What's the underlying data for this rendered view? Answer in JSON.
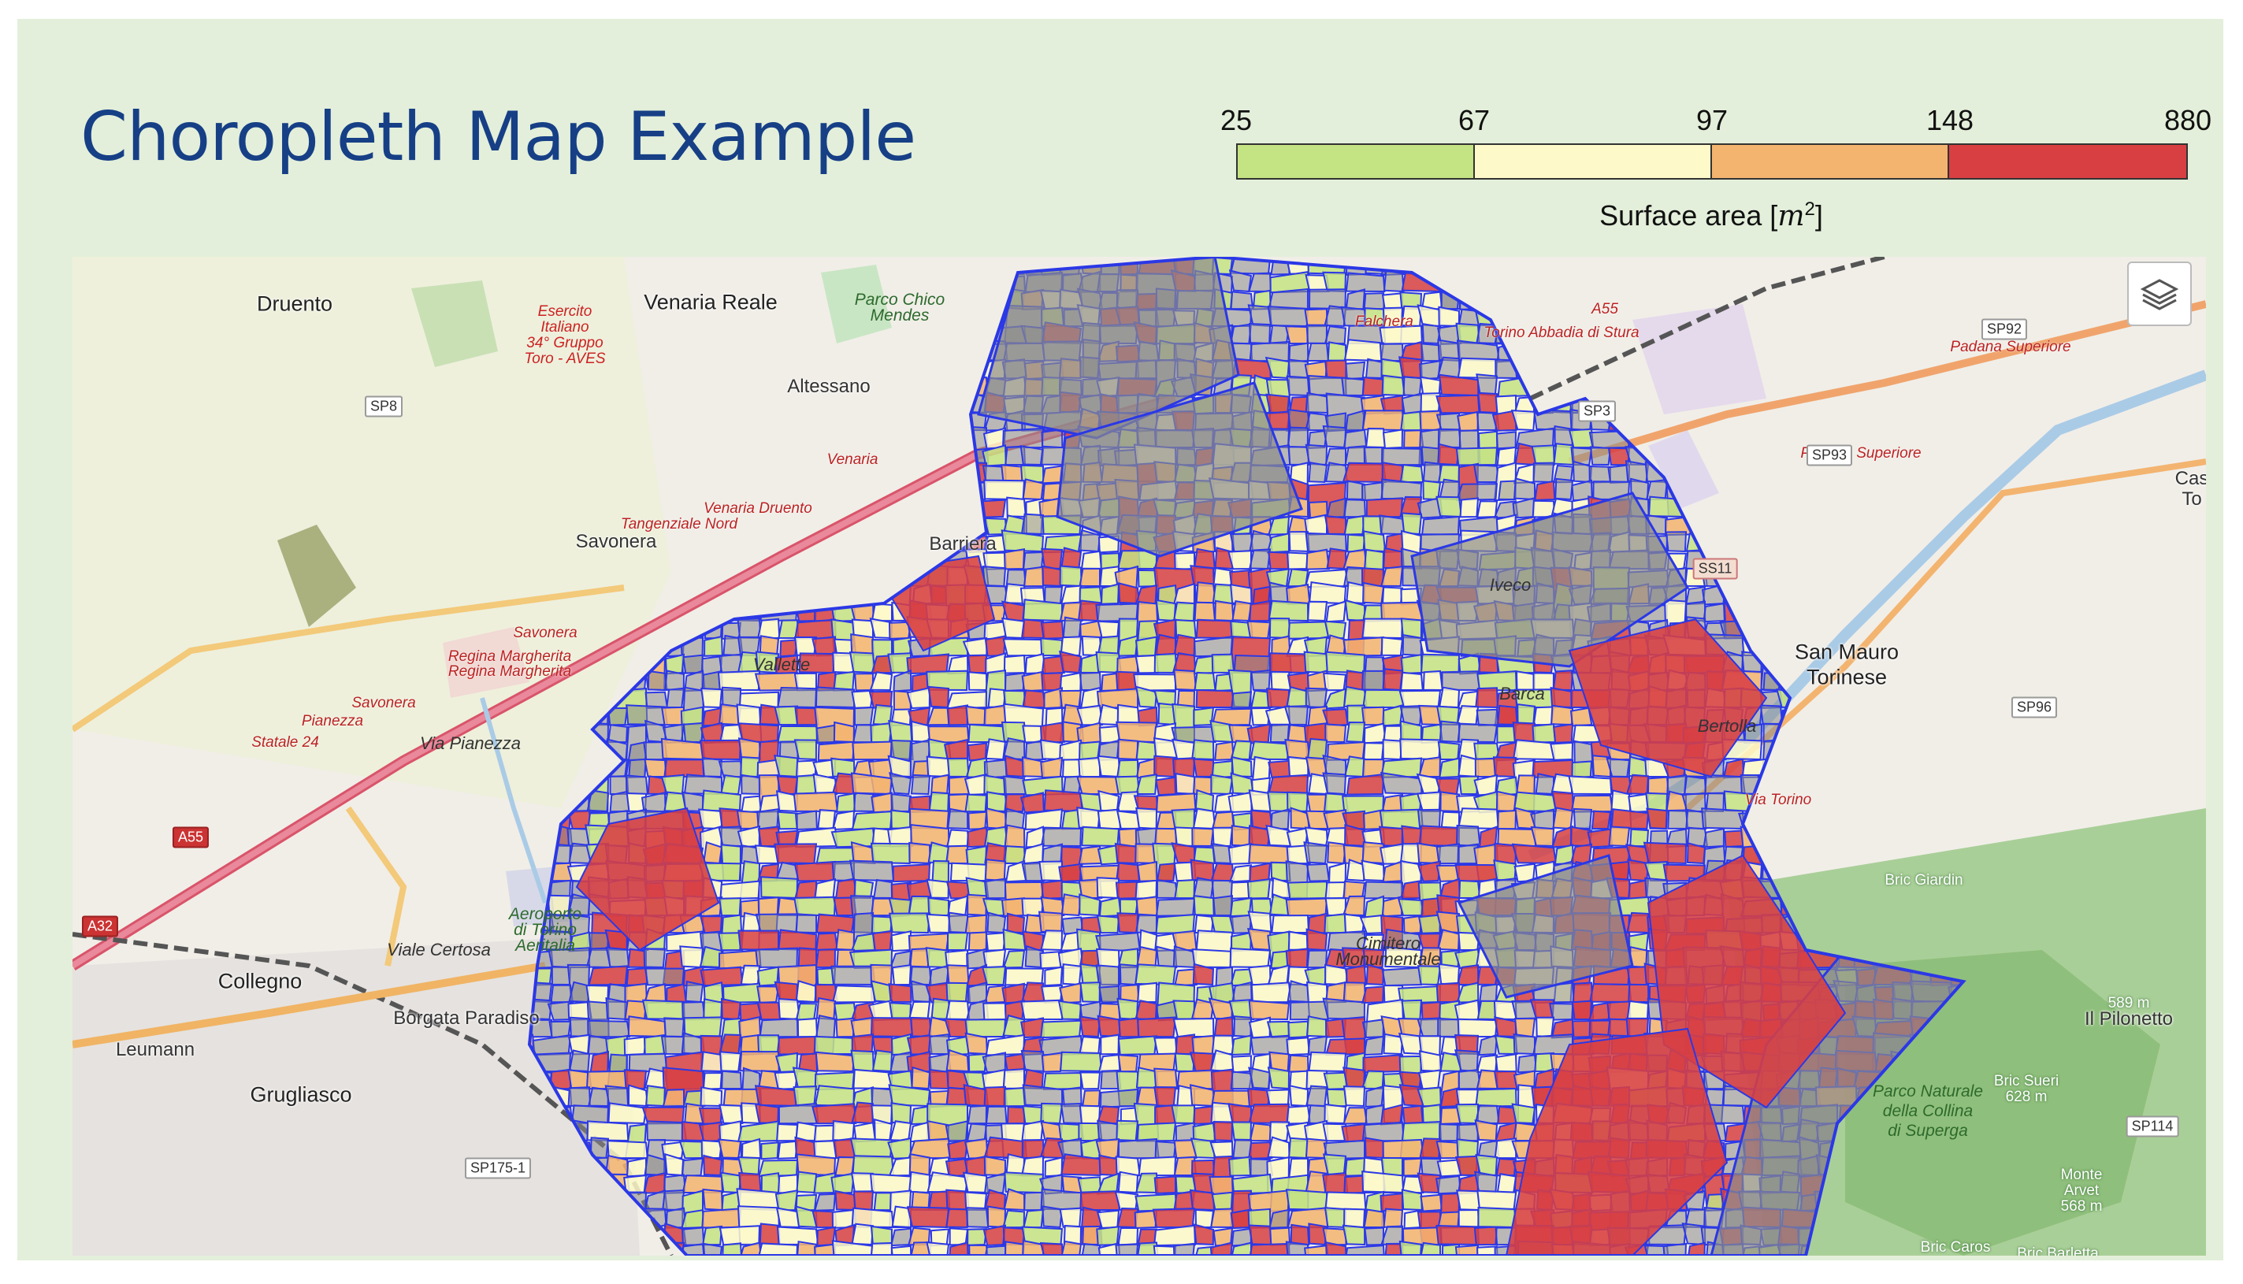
{
  "title": "Choropleth Map Example",
  "legend": {
    "breaks": [
      "25",
      "67",
      "97",
      "148",
      "880"
    ],
    "bins": [
      {
        "from": 25,
        "to": 67,
        "color": "#c4e383"
      },
      {
        "from": 67,
        "to": 97,
        "color": "#fdf9c9"
      },
      {
        "from": 97,
        "to": 148,
        "color": "#f3b470"
      },
      {
        "from": 148,
        "to": 880,
        "color": "#d73f43"
      }
    ],
    "label_text": "Surface area ",
    "label_var": "m",
    "label_exp": "2"
  },
  "map": {
    "layers_icon": "layers-icon",
    "region_border_color": "#2b38e6",
    "no_data_color": "#8c8c8c",
    "places": [
      {
        "text": "Druento",
        "cls": "big"
      },
      {
        "text": "Venaria Reale",
        "cls": "big"
      },
      {
        "text": "Altessano",
        "cls": ""
      },
      {
        "text": "Savonera",
        "cls": ""
      },
      {
        "text": "Collegno",
        "cls": "big"
      },
      {
        "text": "Borgata Paradiso",
        "cls": ""
      },
      {
        "text": "Leumann",
        "cls": ""
      },
      {
        "text": "Grugliasco",
        "cls": "big"
      },
      {
        "text": "San Mauro",
        "cls": "big"
      },
      {
        "text": "Torinese",
        "cls": "big"
      },
      {
        "text": "Il Pilonetto",
        "cls": ""
      },
      {
        "text": "Barriera",
        "cls": ""
      },
      {
        "text": "Cas",
        "cls": ""
      },
      {
        "text": "To",
        "cls": ""
      },
      {
        "text": "Esercito",
        "cls": "area"
      },
      {
        "text": "Italiano",
        "cls": "area"
      },
      {
        "text": "34° Gruppo",
        "cls": "area"
      },
      {
        "text": "Toro - AVES",
        "cls": "area"
      },
      {
        "text": "Parco Chico",
        "cls": "park"
      },
      {
        "text": "Mendes",
        "cls": "park"
      },
      {
        "text": "Venaria",
        "cls": "road"
      },
      {
        "text": "Venaria Druento",
        "cls": "road"
      },
      {
        "text": "Tangenziale Nord",
        "cls": "road"
      },
      {
        "text": "Savonera",
        "cls": "road"
      },
      {
        "text": "Regina Margherita",
        "cls": "road"
      },
      {
        "text": "Regina Margherita",
        "cls": "road"
      },
      {
        "text": "Savonera",
        "cls": "road"
      },
      {
        "text": "Pianezza",
        "cls": "road"
      },
      {
        "text": "Statale 24",
        "cls": "road"
      },
      {
        "text": "Via Pianezza",
        "cls": "dist"
      },
      {
        "text": "Viale Certosa",
        "cls": "dist"
      },
      {
        "text": "Aeroporto",
        "cls": "park"
      },
      {
        "text": "di Torino",
        "cls": "park"
      },
      {
        "text": "Aeritalia",
        "cls": "park"
      },
      {
        "text": "Falchera",
        "cls": "road"
      },
      {
        "text": "Torino Abbadia di Stura",
        "cls": "road"
      },
      {
        "text": "A55",
        "cls": "road"
      },
      {
        "text": "Iveco",
        "cls": "dist"
      },
      {
        "text": "Barca",
        "cls": "dist"
      },
      {
        "text": "Bertolla",
        "cls": "dist"
      },
      {
        "text": "Vallette",
        "cls": "dist"
      },
      {
        "text": "Cimitero",
        "cls": "dist"
      },
      {
        "text": "Monumentale",
        "cls": "dist"
      },
      {
        "text": "Parco Naturale",
        "cls": "park"
      },
      {
        "text": "della Collina",
        "cls": "park"
      },
      {
        "text": "di Superga",
        "cls": "park"
      },
      {
        "text": "Bric Giardin",
        "cls": "mt"
      },
      {
        "text": "Bric Sueri",
        "cls": "mt"
      },
      {
        "text": "628 m",
        "cls": "mt"
      },
      {
        "text": "589 m",
        "cls": "mt"
      },
      {
        "text": "Monte",
        "cls": "mt"
      },
      {
        "text": "Arvet",
        "cls": "mt"
      },
      {
        "text": "568 m",
        "cls": "mt"
      },
      {
        "text": "Bric Caros",
        "cls": "mt"
      },
      {
        "text": "Bric Barletta",
        "cls": "mt"
      },
      {
        "text": "Padana Superiore",
        "cls": "road"
      },
      {
        "text": "Padana Superiore",
        "cls": "road"
      },
      {
        "text": "Via Torino",
        "cls": "road"
      }
    ],
    "shields": [
      {
        "text": "SP8",
        "cls": ""
      },
      {
        "text": "A55",
        "cls": "hw"
      },
      {
        "text": "A32",
        "cls": "hw"
      },
      {
        "text": "SP175-1",
        "cls": ""
      },
      {
        "text": "SP3",
        "cls": ""
      },
      {
        "text": "SP92",
        "cls": ""
      },
      {
        "text": "SP93",
        "cls": ""
      },
      {
        "text": "SS11",
        "cls": "ss"
      },
      {
        "text": "SP96",
        "cls": ""
      },
      {
        "text": "SP114",
        "cls": ""
      }
    ]
  }
}
